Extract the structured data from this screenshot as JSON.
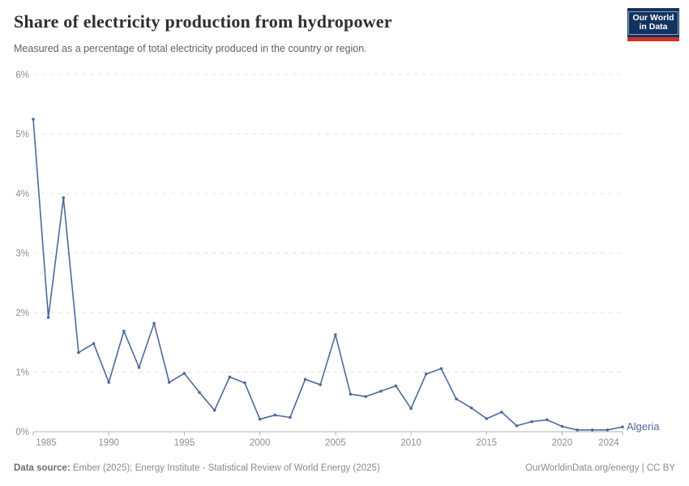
{
  "header": {
    "title": "Share of electricity production from hydropower",
    "subtitle": "Measured as a percentage of total electricity produced in the country or region.",
    "logo": {
      "line1": "Our World",
      "line2": "in Data"
    }
  },
  "footer": {
    "source_label": "Data source:",
    "source_text": " Ember (2025); Energy Institute - Statistical Review of World Energy (2025)",
    "link_text": "OurWorldinData.org/energy",
    "separator": " | ",
    "license_text": "CC BY"
  },
  "colors": {
    "line": "#4C6A9C",
    "entity_label": "#4C6A9C",
    "grid": "#e3e3e3",
    "axis": "#b0b0b0",
    "tick_text": "#8e8e8e",
    "logo_bg": "#12335E",
    "logo_red": "#D0342C"
  },
  "chart_data": {
    "type": "line",
    "title": "Share of electricity production from hydropower",
    "xlabel": "",
    "ylabel": "",
    "xlim": [
      1985,
      2024
    ],
    "ylim": [
      0,
      6
    ],
    "grid": "horizontal-dashed",
    "legend_position": "line-end-label",
    "y_tick_labels": [
      "0%",
      "1%",
      "2%",
      "3%",
      "4%",
      "5%",
      "6%"
    ],
    "x_tick_years": [
      1985,
      1990,
      1995,
      2000,
      2005,
      2010,
      2015,
      2020,
      2024
    ],
    "x": [
      1985,
      1986,
      1987,
      1988,
      1989,
      1990,
      1991,
      1992,
      1993,
      1994,
      1995,
      1996,
      1997,
      1998,
      1999,
      2000,
      2001,
      2002,
      2003,
      2004,
      2005,
      2006,
      2007,
      2008,
      2009,
      2010,
      2011,
      2012,
      2013,
      2014,
      2015,
      2016,
      2017,
      2018,
      2019,
      2020,
      2021,
      2022,
      2023,
      2024
    ],
    "series": [
      {
        "name": "Algeria",
        "color": "#4C6A9C",
        "values": [
          5.25,
          1.92,
          3.93,
          1.33,
          1.48,
          0.83,
          1.69,
          1.08,
          1.82,
          0.83,
          0.98,
          0.66,
          0.36,
          0.92,
          0.82,
          0.21,
          0.28,
          0.24,
          0.88,
          0.79,
          1.63,
          0.63,
          0.59,
          0.68,
          0.77,
          0.39,
          0.97,
          1.06,
          0.55,
          0.4,
          0.22,
          0.33,
          0.1,
          0.17,
          0.2,
          0.09,
          0.03,
          0.03,
          0.03,
          0.08
        ]
      }
    ]
  }
}
